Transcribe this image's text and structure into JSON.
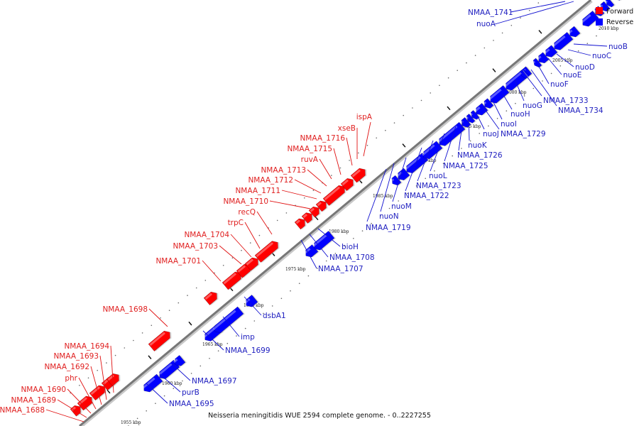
{
  "caption": "Neisseria meningitidis WUE 2594 complete genome. - 0..2227255",
  "colors": {
    "forward": "#ff0000",
    "reverse": "#0000ff",
    "forward_text": "#e02020",
    "reverse_text": "#2020c0"
  },
  "legend": [
    {
      "label": "Forward",
      "color": "#ff0000"
    },
    {
      "label": "Reverse",
      "color": "#0000ff"
    }
  ],
  "ticks": [
    "1955 kbp",
    "1960 kbp",
    "1965 kbp",
    "1970 kbp",
    "1975 kbp",
    "1980 kbp",
    "1985 kbp",
    "1990 kbp",
    "1995 kbp",
    "2000 kbp",
    "2005 kbp",
    "2010 kbp"
  ],
  "forward_genes": [
    "NMAA_1688",
    "NMAA_1689",
    "NMAA_1690",
    "phr",
    "NMAA_1692",
    "NMAA_1693",
    "NMAA_1694",
    "NMAA_1698",
    "NMAA_1701",
    "NMAA_1703",
    "NMAA_1704",
    "trpC",
    "recQ",
    "NMAA_1710",
    "NMAA_1711",
    "NMAA_1712",
    "NMAA_1713",
    "ruvA",
    "NMAA_1715",
    "NMAA_1716",
    "xseB",
    "ispA"
  ],
  "reverse_genes": [
    "NMAA_1695",
    "purB",
    "NMAA_1697",
    "NMAA_1699",
    "imp",
    "dsbA1",
    "NMAA_1707",
    "NMAA_1708",
    "bioH",
    "NMAA_1719",
    "nuoN",
    "nuoM",
    "NMAA_1722",
    "NMAA_1723",
    "nuoL",
    "NMAA_1725",
    "NMAA_1726",
    "nuoK",
    "nuoJ",
    "NMAA_1729",
    "nuoI",
    "nuoH",
    "nuoG",
    "NMAA_1733",
    "NMAA_1734",
    "nuoF",
    "nuoE",
    "nuoD",
    "nuoC",
    "nuoB",
    "nuoA",
    "NMAA_1741"
  ]
}
